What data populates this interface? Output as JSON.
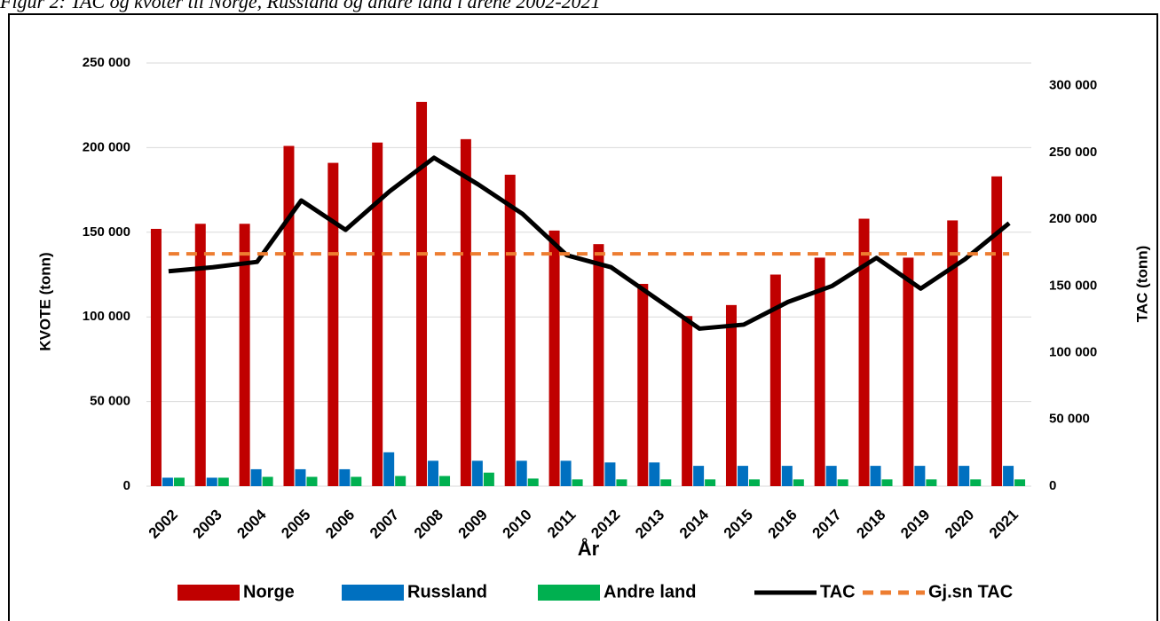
{
  "chart_data": {
    "type": "bar",
    "title": "Figur 2: TAC og kvoter til Norge, Russland og andre land i årene 2002-2021",
    "xlabel": "År",
    "ylabel": "KVOTE (tonn)",
    "y2label": "TAC (tonn)",
    "categories": [
      "2002",
      "2003",
      "2004",
      "2005",
      "2006",
      "2007",
      "2008",
      "2009",
      "2010",
      "2011",
      "2012",
      "2013",
      "2014",
      "2015",
      "2016",
      "2017",
      "2018",
      "2019",
      "2020",
      "2021"
    ],
    "ylim": [
      0,
      250000
    ],
    "yticks": [
      {
        "value": 0,
        "label": "0"
      },
      {
        "value": 50000,
        "label": "50 000"
      },
      {
        "value": 100000,
        "label": "100 000"
      },
      {
        "value": 150000,
        "label": "150 000"
      },
      {
        "value": 200000,
        "label": "200 000"
      },
      {
        "value": 250000,
        "label": "250 000"
      }
    ],
    "y2lim": [
      0,
      317000
    ],
    "y2ticks": [
      {
        "value": 0,
        "label": "0"
      },
      {
        "value": 50000,
        "label": "50 000"
      },
      {
        "value": 100000,
        "label": "100 000"
      },
      {
        "value": 150000,
        "label": "150 000"
      },
      {
        "value": 200000,
        "label": "200 000"
      },
      {
        "value": 250000,
        "label": "250 000"
      },
      {
        "value": 300000,
        "label": "300 000"
      }
    ],
    "grid": true,
    "legend": "bottom",
    "series": [
      {
        "name": "Norge",
        "type": "bar",
        "color": "#c00000",
        "values": [
          152000,
          155000,
          155000,
          201000,
          191000,
          203000,
          227000,
          205000,
          184000,
          151000,
          143000,
          119500,
          100500,
          107000,
          125000,
          135000,
          158000,
          135000,
          157000,
          183000
        ]
      },
      {
        "name": "Russland",
        "type": "bar",
        "color": "#0070c0",
        "values": [
          5000,
          5000,
          10000,
          10000,
          10000,
          20000,
          15000,
          15000,
          15000,
          15000,
          14000,
          14000,
          12000,
          12000,
          12000,
          12000,
          12000,
          12000,
          12000,
          12000
        ]
      },
      {
        "name": "Andre land",
        "type": "bar",
        "color": "#00b050",
        "values": [
          5000,
          5000,
          5500,
          5500,
          5500,
          6000,
          6000,
          8000,
          4500,
          4000,
          4000,
          4000,
          4000,
          4000,
          4000,
          4000,
          4000,
          4000,
          4000,
          4000
        ]
      },
      {
        "name": "TAC",
        "type": "line",
        "axis": "y2",
        "color": "#000000",
        "values": [
          161000,
          164000,
          168000,
          214000,
          192000,
          221000,
          246000,
          226000,
          204000,
          173000,
          164000,
          141000,
          118000,
          121000,
          138000,
          150000,
          171000,
          148000,
          170000,
          197000
        ]
      },
      {
        "name": "Gj.sn TAC",
        "type": "line",
        "axis": "y2",
        "style": "dashed",
        "color": "#ed7d31",
        "values": [
          174000,
          174000,
          174000,
          174000,
          174000,
          174000,
          174000,
          174000,
          174000,
          174000,
          174000,
          174000,
          174000,
          174000,
          174000,
          174000,
          174000,
          174000,
          174000,
          174000
        ]
      }
    ]
  }
}
